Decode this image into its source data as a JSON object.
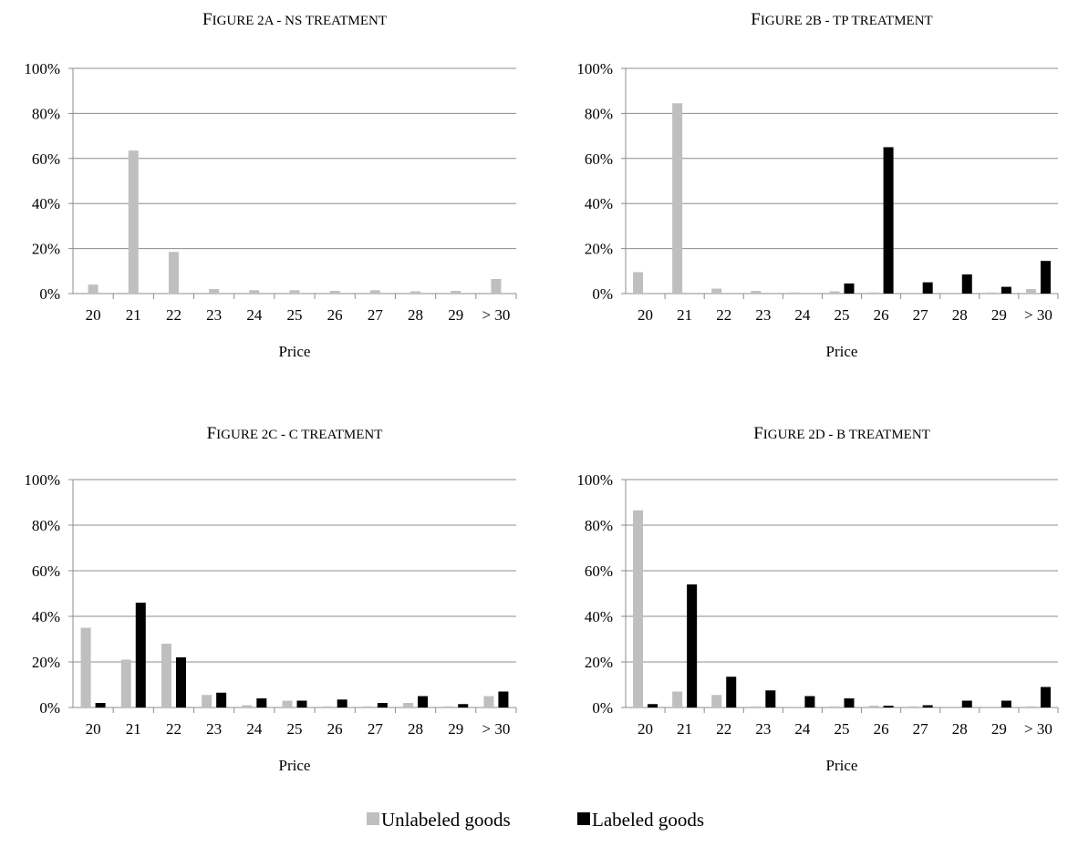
{
  "chart_data": [
    {
      "type": "bar",
      "title_prefix": "F",
      "title_rest": "IGURE 2A - NS TREATMENT",
      "title": "Figure 2a - NS treatment",
      "xlabel": "Price",
      "ylabel": "",
      "ylim": [
        0,
        100
      ],
      "yticks": [
        "0%",
        "20%",
        "40%",
        "60%",
        "80%",
        "100%"
      ],
      "grid": true,
      "categories": [
        "20",
        "21",
        "22",
        "23",
        "24",
        "25",
        "26",
        "27",
        "28",
        "29",
        "> 30"
      ],
      "series": [
        {
          "name": "Unlabeled goods",
          "color": "#bfbfbf",
          "values": [
            4,
            63.5,
            18.5,
            2,
            1.5,
            1.5,
            1.2,
            1.5,
            1,
            1.2,
            6.5
          ]
        }
      ]
    },
    {
      "type": "bar",
      "title_prefix": "F",
      "title_rest": "IGURE 2B - TP TREATMENT",
      "title": "Figure 2b - TP treatment",
      "xlabel": "Price",
      "ylabel": "",
      "ylim": [
        0,
        100
      ],
      "yticks": [
        "0%",
        "20%",
        "40%",
        "60%",
        "80%",
        "100%"
      ],
      "grid": true,
      "categories": [
        "20",
        "21",
        "22",
        "23",
        "24",
        "25",
        "26",
        "27",
        "28",
        "29",
        "> 30"
      ],
      "series": [
        {
          "name": "Unlabeled goods",
          "color": "#bfbfbf",
          "values": [
            9.5,
            84.5,
            2.2,
            1.2,
            0.5,
            1,
            0.5,
            0,
            0,
            0.5,
            2
          ]
        },
        {
          "name": "Labeled goods",
          "color": "#000000",
          "values": [
            0,
            0,
            0,
            0,
            0,
            4.5,
            65,
            5,
            8.5,
            3,
            14.5
          ]
        }
      ]
    },
    {
      "type": "bar",
      "title_prefix": "F",
      "title_rest": "IGURE 2C - C TREATMENT",
      "title": "Figure 2c - C treatment",
      "xlabel": "Price",
      "ylabel": "",
      "ylim": [
        0,
        100
      ],
      "yticks": [
        "0%",
        "20%",
        "40%",
        "60%",
        "80%",
        "100%"
      ],
      "grid": true,
      "categories": [
        "20",
        "21",
        "22",
        "23",
        "24",
        "25",
        "26",
        "27",
        "28",
        "29",
        "> 30"
      ],
      "series": [
        {
          "name": "Unlabeled goods",
          "color": "#bfbfbf",
          "values": [
            35,
            21,
            28,
            5.5,
            1,
            3,
            0.5,
            0.5,
            2,
            0.5,
            5
          ]
        },
        {
          "name": "Labeled goods",
          "color": "#000000",
          "values": [
            2,
            46,
            22,
            6.5,
            4,
            3,
            3.5,
            2,
            5,
            1.5,
            7
          ]
        }
      ]
    },
    {
      "type": "bar",
      "title_prefix": "F",
      "title_rest": "IGURE 2D - B TREATMENT",
      "title": "Figure 2d - B treatment",
      "xlabel": "Price",
      "ylabel": "",
      "ylim": [
        0,
        100
      ],
      "yticks": [
        "0%",
        "20%",
        "40%",
        "60%",
        "80%",
        "100%"
      ],
      "grid": true,
      "categories": [
        "20",
        "21",
        "22",
        "23",
        "24",
        "25",
        "26",
        "27",
        "28",
        "29",
        "> 30"
      ],
      "series": [
        {
          "name": "Unlabeled goods",
          "color": "#bfbfbf",
          "values": [
            86.5,
            7,
            5.5,
            0.5,
            0.3,
            0.5,
            0.8,
            0.5,
            0,
            0,
            0.5
          ]
        },
        {
          "name": "Labeled goods",
          "color": "#000000",
          "values": [
            1.5,
            54,
            13.5,
            7.5,
            5,
            4,
            0.8,
            1,
            3,
            3,
            9
          ]
        }
      ]
    }
  ],
  "legend": {
    "placement": "bottom-center",
    "items": [
      {
        "label": "Unlabeled goods",
        "color": "#bfbfbf"
      },
      {
        "label": "Labeled goods",
        "color": "#000000"
      }
    ]
  }
}
